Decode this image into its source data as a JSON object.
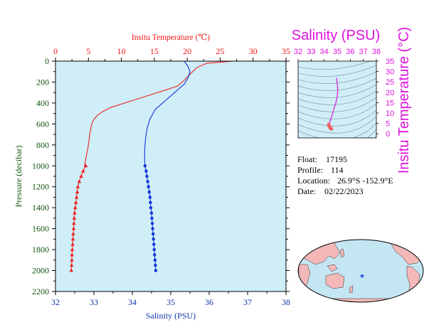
{
  "chart_data": [
    {
      "type": "line",
      "title": "",
      "top_axis": {
        "label": "Insitu Temperature (℃)",
        "range": [
          0,
          35
        ],
        "ticks": [
          0,
          5,
          10,
          15,
          20,
          25,
          30,
          35
        ]
      },
      "bottom_axis": {
        "label": "Salinity (PSU)",
        "range": [
          32,
          38
        ],
        "ticks": [
          32,
          33,
          34,
          35,
          36,
          37,
          38
        ]
      },
      "y_axis": {
        "label": "Pressure (decibar)",
        "range": [
          0,
          2200
        ],
        "inverted": true,
        "ticks": [
          0,
          200,
          400,
          600,
          800,
          1000,
          1200,
          1400,
          1600,
          1800,
          2000,
          2200
        ]
      },
      "grid": false,
      "background": "#cfeef7",
      "series": [
        {
          "axis": "top",
          "color": "#ee2222",
          "marker": "triangle",
          "profile": [
            [
              26.9,
              0
            ],
            [
              26.0,
              5
            ],
            [
              23.0,
              20
            ],
            [
              21.5,
              60
            ],
            [
              20.5,
              120
            ],
            [
              19.6,
              180
            ],
            [
              18.5,
              240
            ],
            [
              16.5,
              280
            ],
            [
              14.5,
              320
            ],
            [
              12.5,
              360
            ],
            [
              10.5,
              400
            ],
            [
              8.5,
              440
            ],
            [
              7.2,
              480
            ],
            [
              6.3,
              520
            ],
            [
              5.8,
              560
            ],
            [
              5.5,
              600
            ],
            [
              5.2,
              700
            ],
            [
              5.0,
              800
            ],
            [
              4.7,
              900
            ],
            [
              4.4,
              1000
            ]
          ],
          "markers": [
            [
              4.6,
              1000
            ],
            [
              4.2,
              1050
            ],
            [
              3.9,
              1100
            ],
            [
              3.6,
              1150
            ],
            [
              3.4,
              1200
            ],
            [
              3.3,
              1250
            ],
            [
              3.2,
              1300
            ],
            [
              3.1,
              1350
            ],
            [
              3.0,
              1400
            ],
            [
              2.9,
              1450
            ],
            [
              2.85,
              1500
            ],
            [
              2.8,
              1550
            ],
            [
              2.75,
              1600
            ],
            [
              2.7,
              1650
            ],
            [
              2.65,
              1700
            ],
            [
              2.6,
              1750
            ],
            [
              2.55,
              1800
            ],
            [
              2.5,
              1850
            ],
            [
              2.48,
              1900
            ],
            [
              2.45,
              1950
            ],
            [
              2.4,
              2000
            ]
          ]
        },
        {
          "axis": "bottom",
          "color": "#1133dd",
          "marker": "circle",
          "profile": [
            [
              35.35,
              0
            ],
            [
              35.45,
              50
            ],
            [
              35.5,
              100
            ],
            [
              35.45,
              160
            ],
            [
              35.35,
              220
            ],
            [
              35.1,
              300
            ],
            [
              34.85,
              380
            ],
            [
              34.6,
              460
            ],
            [
              34.45,
              560
            ],
            [
              34.38,
              650
            ],
            [
              34.34,
              750
            ],
            [
              34.32,
              850
            ],
            [
              34.32,
              950
            ],
            [
              34.33,
              1000
            ]
          ],
          "markers": [
            [
              34.33,
              1000
            ],
            [
              34.36,
              1050
            ],
            [
              34.38,
              1100
            ],
            [
              34.4,
              1150
            ],
            [
              34.42,
              1200
            ],
            [
              34.44,
              1250
            ],
            [
              34.46,
              1300
            ],
            [
              34.47,
              1350
            ],
            [
              34.48,
              1400
            ],
            [
              34.5,
              1450
            ],
            [
              34.51,
              1500
            ],
            [
              34.52,
              1550
            ],
            [
              34.53,
              1600
            ],
            [
              34.54,
              1650
            ],
            [
              34.55,
              1700
            ],
            [
              34.56,
              1750
            ],
            [
              34.57,
              1800
            ],
            [
              34.58,
              1850
            ],
            [
              34.59,
              1900
            ],
            [
              34.6,
              1950
            ],
            [
              34.61,
              2000
            ]
          ]
        }
      ]
    },
    {
      "type": "scatter",
      "title": "Salinity (PSU)",
      "x_axis": {
        "label": "Salinity (PSU)",
        "range": [
          32,
          38
        ],
        "ticks": [
          32,
          33,
          34,
          35,
          36,
          37,
          38
        ],
        "position": "top"
      },
      "y_axis": {
        "label": "Insitu Temperature (°C)",
        "range": [
          -2,
          35
        ],
        "ticks": [
          0,
          5,
          10,
          15,
          20,
          25,
          30,
          35
        ],
        "position": "right"
      },
      "background": "#cfeef7",
      "line_color": "#dd22dd",
      "marker_color": "#ee6666",
      "profile": [
        [
          34.95,
          27.0
        ],
        [
          35.0,
          24.0
        ],
        [
          35.05,
          21.0
        ],
        [
          35.0,
          18.0
        ],
        [
          34.9,
          15.0
        ],
        [
          34.75,
          12.0
        ],
        [
          34.6,
          9.0
        ],
        [
          34.45,
          6.0
        ],
        [
          34.35,
          4.4
        ]
      ],
      "markers": [
        [
          34.35,
          4.4
        ],
        [
          34.4,
          3.6
        ],
        [
          34.45,
          3.0
        ],
        [
          34.5,
          2.6
        ],
        [
          34.55,
          2.4
        ]
      ]
    }
  ],
  "info": {
    "float_label": "Float:",
    "float_value": "17195",
    "profile_label": "Profile:",
    "profile_value": "114",
    "location_label": "Location:",
    "location_value": "26.9°S  -152.9°E",
    "date_label": "Date:",
    "date_value": "02/22/2023"
  },
  "map": {
    "ocean_color": "#c4e6f2",
    "land_color": "#f4b8b8",
    "marker_color": "#2244ee",
    "marker_symbol": "★"
  }
}
